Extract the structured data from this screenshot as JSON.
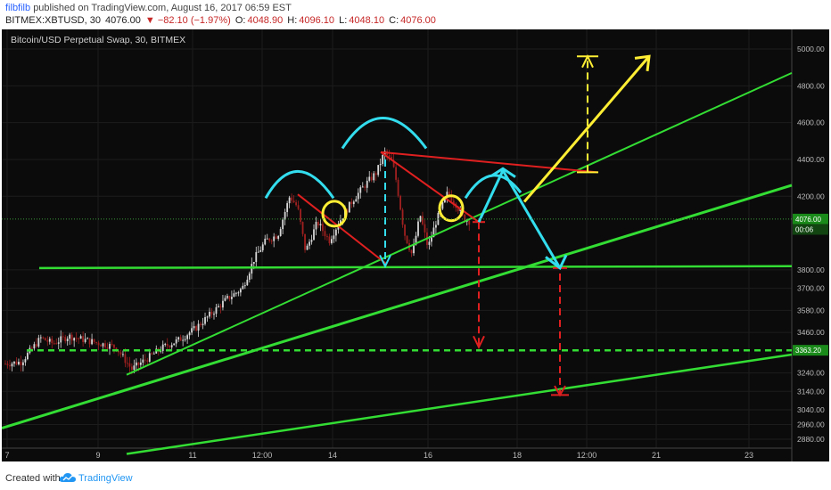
{
  "header": {
    "author": "filbfilb",
    "published": "published on TradingView.com, August 16, 2017 06:59 EST",
    "symbol": "BITMEX:XBTUSD, 30",
    "price": "4076.00",
    "change": "▼ −82.10 (−1.97%)",
    "open_label": "O:",
    "open": "4048.90",
    "high_label": "H:",
    "high": "4096.10",
    "low_label": "L:",
    "low": "4048.10",
    "close_label": "C:",
    "close": "4076.00"
  },
  "chart_title": "Bitcoin/USD Perpetual Swap, 30, BITMEX",
  "footer": {
    "created_with": "Created with",
    "brand": "TradingView"
  },
  "colors": {
    "background": "#0b0b0b",
    "green": "#33dd33",
    "red": "#e02020",
    "cyan": "#33ddee",
    "yellow": "#ffee33",
    "candle_up": "#d8d8d8",
    "candle_down": "#a02020"
  },
  "chart_data": {
    "type": "candlestick",
    "ylim": [
      2790,
      5060
    ],
    "y_ticks": [
      "5000.00",
      "4800.00",
      "4600.00",
      "4400.00",
      "4200.00",
      "3800.00",
      "3700.00",
      "3580.00",
      "3460.00",
      "3240.00",
      "3140.00",
      "3040.00",
      "2960.00",
      "2880.00"
    ],
    "price_labels": [
      {
        "value": 4076,
        "text": "4076.00"
      },
      {
        "value": 4020,
        "text": "00:06"
      },
      {
        "value": 3363.2,
        "text": "3363.20"
      }
    ],
    "x_ticks": [
      "7",
      "9",
      "11",
      "12:00",
      "14",
      "16",
      "18",
      "12:00",
      "21",
      "23"
    ],
    "price_path": [
      [
        0,
        3290
      ],
      [
        0.02,
        3300
      ],
      [
        0.045,
        3430
      ],
      [
        0.06,
        3400
      ],
      [
        0.08,
        3440
      ],
      [
        0.1,
        3420
      ],
      [
        0.12,
        3400
      ],
      [
        0.14,
        3380
      ],
      [
        0.16,
        3260
      ],
      [
        0.18,
        3320
      ],
      [
        0.2,
        3380
      ],
      [
        0.22,
        3420
      ],
      [
        0.24,
        3480
      ],
      [
        0.26,
        3560
      ],
      [
        0.28,
        3640
      ],
      [
        0.3,
        3700
      ],
      [
        0.315,
        3860
      ],
      [
        0.33,
        3960
      ],
      [
        0.345,
        3990
      ],
      [
        0.36,
        4200
      ],
      [
        0.37,
        4140
      ],
      [
        0.38,
        3900
      ],
      [
        0.395,
        4060
      ],
      [
        0.41,
        3960
      ],
      [
        0.425,
        4080
      ],
      [
        0.44,
        4180
      ],
      [
        0.455,
        4260
      ],
      [
        0.47,
        4330
      ],
      [
        0.48,
        4440
      ],
      [
        0.49,
        4380
      ],
      [
        0.495,
        4280
      ],
      [
        0.505,
        4000
      ],
      [
        0.515,
        3880
      ],
      [
        0.525,
        4100
      ],
      [
        0.535,
        3920
      ],
      [
        0.545,
        4060
      ],
      [
        0.56,
        4220
      ],
      [
        0.57,
        4160
      ],
      [
        0.58,
        4080
      ],
      [
        0.59,
        4060
      ]
    ],
    "annotations": [
      {
        "type": "support",
        "value": 3810
      },
      {
        "type": "support-dashed",
        "value": 3363.2
      },
      {
        "type": "trendlines",
        "count": 4
      },
      {
        "type": "head-and-shoulders"
      },
      {
        "type": "target-up",
        "value": 4960
      },
      {
        "type": "target-down",
        "value": 3120
      }
    ]
  }
}
